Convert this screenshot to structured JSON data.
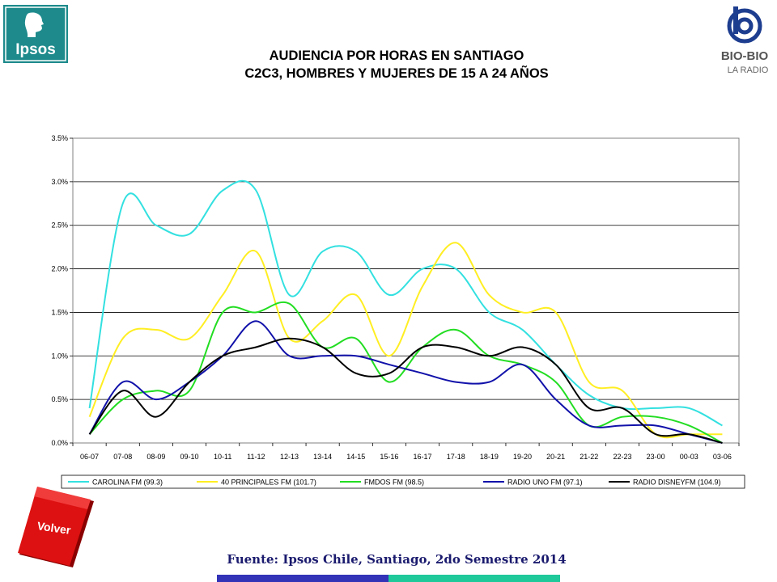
{
  "header": {
    "title_line1": "AUDIENCIA POR HORAS EN SANTIAGO",
    "title_line2": "C2C3, HOMBRES Y MUJERES DE 15 A 24 AÑOS",
    "ipsos_logo_text": "Ipsos",
    "radio_logo_text": "BIO-BIO",
    "radio_logo_subtext": "LA RADIO"
  },
  "footer": {
    "source": "Fuente: Ipsos Chile, Santiago, 2do Semestre 2014",
    "volver_label": "Volver"
  },
  "colors": {
    "brand_ipsos": "#1e8a8c",
    "volver_red": "#dd1111",
    "source_text": "#1a1a6e",
    "bar_blue": "#3333b8",
    "bar_teal": "#1fc99a"
  },
  "chart_data": {
    "type": "line",
    "title": "",
    "xlabel": "",
    "ylabel": "",
    "ylim": [
      0,
      3.5
    ],
    "yticks": [
      "0.0%",
      "0.5%",
      "1.0%",
      "1.5%",
      "2.0%",
      "2.5%",
      "3.0%",
      "3.5%"
    ],
    "ytick_values": [
      0,
      0.5,
      1.0,
      1.5,
      2.0,
      2.5,
      3.0,
      3.5
    ],
    "grid": true,
    "legend_position": "bottom",
    "categories": [
      "06-07",
      "07-08",
      "08-09",
      "09-10",
      "10-11",
      "11-12",
      "12-13",
      "13-14",
      "14-15",
      "15-16",
      "16-17",
      "17-18",
      "18-19",
      "19-20",
      "20-21",
      "21-22",
      "22-23",
      "23-00",
      "00-03",
      "03-06"
    ],
    "series": [
      {
        "name": "CAROLINA FM (99.3)",
        "color": "#33e0e0",
        "values": [
          0.4,
          2.75,
          2.5,
          2.4,
          2.9,
          2.9,
          1.7,
          2.2,
          2.2,
          1.7,
          2.0,
          2.0,
          1.5,
          1.3,
          0.9,
          0.55,
          0.4,
          0.4,
          0.4,
          0.2
        ]
      },
      {
        "name": "40 PRINCIPALES FM (101.7)",
        "color": "#ffee22",
        "values": [
          0.3,
          1.2,
          1.3,
          1.2,
          1.7,
          2.2,
          1.2,
          1.4,
          1.7,
          1.0,
          1.8,
          2.3,
          1.7,
          1.5,
          1.5,
          0.7,
          0.6,
          0.1,
          0.1,
          0.1
        ]
      },
      {
        "name": "FMDOS FM (98.5)",
        "color": "#22dd22",
        "values": [
          0.1,
          0.5,
          0.6,
          0.6,
          1.5,
          1.5,
          1.6,
          1.1,
          1.2,
          0.7,
          1.1,
          1.3,
          1.0,
          0.9,
          0.7,
          0.2,
          0.3,
          0.3,
          0.2,
          0.0
        ]
      },
      {
        "name": "RADIO UNO FM (97.1)",
        "color": "#1111aa",
        "values": [
          0.1,
          0.7,
          0.5,
          0.7,
          1.0,
          1.4,
          1.0,
          1.0,
          1.0,
          0.9,
          0.8,
          0.7,
          0.7,
          0.9,
          0.5,
          0.2,
          0.2,
          0.2,
          0.1,
          0.0
        ]
      },
      {
        "name": "RADIO DISNEYFM (104.9)",
        "color": "#000000",
        "values": [
          0.1,
          0.6,
          0.3,
          0.7,
          1.0,
          1.1,
          1.2,
          1.1,
          0.8,
          0.8,
          1.1,
          1.1,
          1.0,
          1.1,
          0.9,
          0.4,
          0.4,
          0.1,
          0.1,
          0.0
        ]
      }
    ]
  }
}
